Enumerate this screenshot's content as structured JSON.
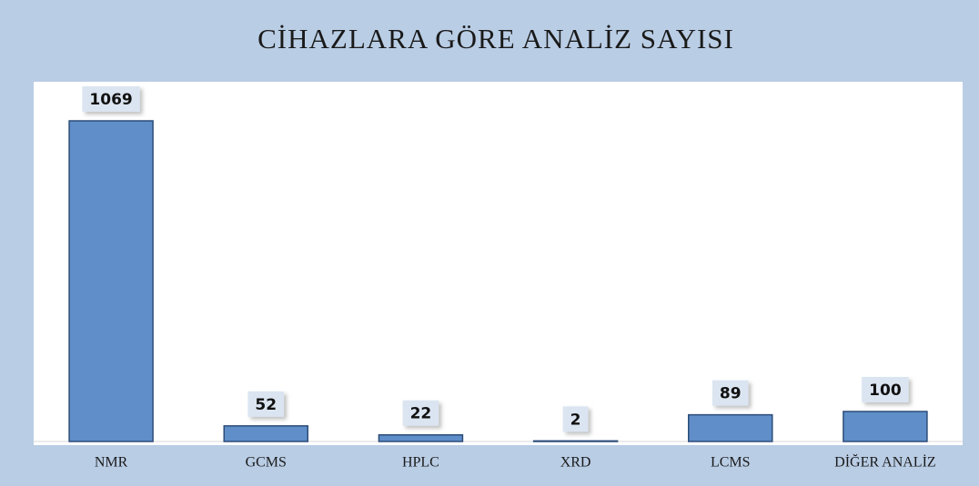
{
  "chart_data": {
    "type": "bar",
    "title": "CİHAZLARA GÖRE ANALİZ SAYISI",
    "categories": [
      "NMR",
      "GCMS",
      "HPLC",
      "XRD",
      "LCMS",
      "DİĞER ANALİZ"
    ],
    "values": [
      1069,
      52,
      22,
      2,
      89,
      100
    ],
    "color": "#5f8ec9"
  }
}
